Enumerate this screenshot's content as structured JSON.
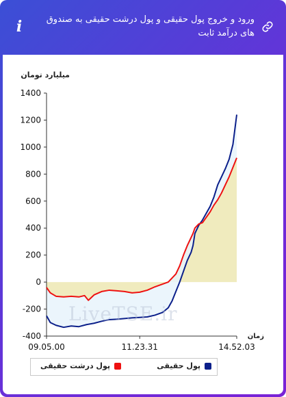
{
  "header": {
    "title": "ورود و خروج پول حقیقی و پول درشت حقیقی به صندوق های درآمد ثابت",
    "info_icon": "info-icon",
    "link_icon": "link-icon"
  },
  "watermark": "LiveTSE.ir",
  "colors": {
    "series1": "#0b1f8a",
    "series2": "#ee1111",
    "fill_area": "#f0ebbe",
    "fill_between": "#e8f3fb"
  },
  "chart_data": {
    "type": "line",
    "ylabel": "میلیارد تومان",
    "xlabel": "زمان",
    "ylim": [
      -400,
      1400
    ],
    "yticks": [
      -400,
      -200,
      0,
      200,
      400,
      600,
      800,
      1000,
      1200,
      1400
    ],
    "xtick_labels": [
      "09.05.00",
      "11.23.31",
      "14.52.03"
    ],
    "xtick_positions": [
      0,
      0.49,
      1
    ],
    "grid": false,
    "legend_position": "bottom",
    "series": [
      {
        "name": "پول حقیقی",
        "color": "#0b1f8a",
        "points": [
          [
            0,
            -250
          ],
          [
            0.02,
            -300
          ],
          [
            0.05,
            -320
          ],
          [
            0.09,
            -335
          ],
          [
            0.13,
            -325
          ],
          [
            0.17,
            -330
          ],
          [
            0.21,
            -315
          ],
          [
            0.25,
            -305
          ],
          [
            0.29,
            -290
          ],
          [
            0.33,
            -278
          ],
          [
            0.37,
            -275
          ],
          [
            0.41,
            -270
          ],
          [
            0.45,
            -265
          ],
          [
            0.49,
            -262
          ],
          [
            0.53,
            -258
          ],
          [
            0.57,
            -245
          ],
          [
            0.61,
            -225
          ],
          [
            0.64,
            -190
          ],
          [
            0.66,
            -140
          ],
          [
            0.68,
            -70
          ],
          [
            0.7,
            0
          ],
          [
            0.72,
            80
          ],
          [
            0.74,
            160
          ],
          [
            0.76,
            220
          ],
          [
            0.77,
            270
          ],
          [
            0.78,
            360
          ],
          [
            0.8,
            420
          ],
          [
            0.82,
            460
          ],
          [
            0.84,
            510
          ],
          [
            0.86,
            560
          ],
          [
            0.88,
            630
          ],
          [
            0.9,
            720
          ],
          [
            0.92,
            780
          ],
          [
            0.94,
            840
          ],
          [
            0.96,
            910
          ],
          [
            0.98,
            1020
          ],
          [
            1.0,
            1240
          ]
        ]
      },
      {
        "name": "پول درشت حقیقی",
        "color": "#ee1111",
        "points": [
          [
            0,
            -40
          ],
          [
            0.02,
            -80
          ],
          [
            0.05,
            -105
          ],
          [
            0.09,
            -110
          ],
          [
            0.13,
            -105
          ],
          [
            0.17,
            -110
          ],
          [
            0.2,
            -100
          ],
          [
            0.22,
            -135
          ],
          [
            0.25,
            -95
          ],
          [
            0.29,
            -70
          ],
          [
            0.33,
            -60
          ],
          [
            0.37,
            -65
          ],
          [
            0.41,
            -70
          ],
          [
            0.45,
            -80
          ],
          [
            0.49,
            -75
          ],
          [
            0.53,
            -60
          ],
          [
            0.57,
            -35
          ],
          [
            0.61,
            -15
          ],
          [
            0.64,
            0
          ],
          [
            0.66,
            30
          ],
          [
            0.68,
            60
          ],
          [
            0.7,
            120
          ],
          [
            0.72,
            200
          ],
          [
            0.74,
            270
          ],
          [
            0.76,
            330
          ],
          [
            0.77,
            360
          ],
          [
            0.78,
            400
          ],
          [
            0.8,
            430
          ],
          [
            0.82,
            440
          ],
          [
            0.84,
            480
          ],
          [
            0.86,
            520
          ],
          [
            0.88,
            570
          ],
          [
            0.9,
            610
          ],
          [
            0.92,
            660
          ],
          [
            0.94,
            720
          ],
          [
            0.96,
            780
          ],
          [
            0.98,
            850
          ],
          [
            1.0,
            920
          ]
        ]
      }
    ]
  }
}
